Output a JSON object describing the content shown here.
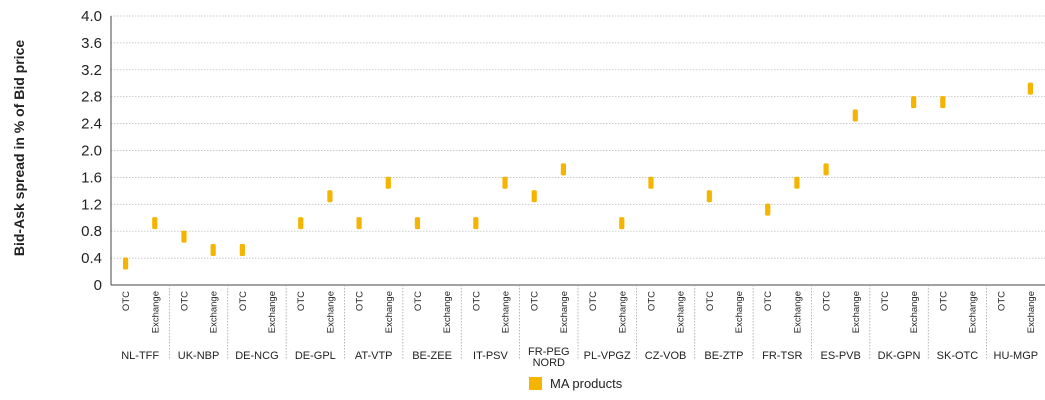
{
  "chart_data": {
    "type": "scatter",
    "ylabel": "Bid-Ask spread in % of Bid price",
    "ylim": [
      0,
      4.0
    ],
    "yticks": [
      "0",
      "0.4",
      "0.8",
      "1.2",
      "1.6",
      "2.0",
      "2.4",
      "2.8",
      "3.2",
      "3.6",
      "4.0"
    ],
    "ytick_values": [
      0,
      0.4,
      0.8,
      1.2,
      1.6,
      2.0,
      2.4,
      2.8,
      3.2,
      3.6,
      4.0
    ],
    "grid": true,
    "legend_position": "bottom",
    "subcategories": [
      "OTC",
      "Exchange"
    ],
    "groups": [
      {
        "label": "NL-TFF",
        "values": [
          0.32,
          0.92
        ]
      },
      {
        "label": "UK-NBP",
        "values": [
          0.72,
          0.52
        ]
      },
      {
        "label": "DE-NCG",
        "values": [
          0.52,
          null
        ]
      },
      {
        "label": "DE-GPL",
        "values": [
          0.92,
          1.32
        ]
      },
      {
        "label": "AT-VTP",
        "values": [
          0.92,
          1.52
        ]
      },
      {
        "label": "BE-ZEE",
        "values": [
          0.92,
          null
        ]
      },
      {
        "label": "IT-PSV",
        "values": [
          0.92,
          1.52
        ]
      },
      {
        "label": "FR-PEG NORD",
        "label_lines": [
          "FR-PEG",
          "NORD"
        ],
        "values": [
          1.32,
          1.72
        ]
      },
      {
        "label": "PL-VPGZ",
        "values": [
          null,
          0.92
        ]
      },
      {
        "label": "CZ-VOB",
        "values": [
          1.52,
          null
        ]
      },
      {
        "label": "BE-ZTP",
        "values": [
          1.32,
          null
        ]
      },
      {
        "label": "FR-TSR",
        "values": [
          1.12,
          1.52
        ]
      },
      {
        "label": "ES-PVB",
        "values": [
          1.72,
          2.52
        ]
      },
      {
        "label": "DK-GPN",
        "values": [
          null,
          2.72
        ]
      },
      {
        "label": "SK-OTC",
        "values": [
          2.72,
          null
        ]
      },
      {
        "label": "HU-MGP",
        "values": [
          null,
          2.92
        ]
      }
    ],
    "series": [
      {
        "name": "MA products",
        "color": "#f5b400"
      }
    ]
  }
}
